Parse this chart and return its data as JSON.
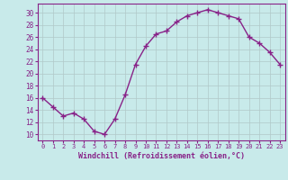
{
  "x": [
    0,
    1,
    2,
    3,
    4,
    5,
    6,
    7,
    8,
    9,
    10,
    11,
    12,
    13,
    14,
    15,
    16,
    17,
    18,
    19,
    20,
    21,
    22,
    23
  ],
  "y": [
    16,
    14.5,
    13,
    13.5,
    12.5,
    10.5,
    10,
    12.5,
    16.5,
    21.5,
    24.5,
    26.5,
    27,
    28.5,
    29.5,
    30,
    30.5,
    30,
    29.5,
    29,
    26,
    25,
    23.5,
    21.5
  ],
  "line_color": "#882288",
  "marker": "+",
  "marker_size": 4,
  "marker_lw": 1.0,
  "bg_color": "#c8eaea",
  "grid_color": "#b0c8c8",
  "xlabel": "Windchill (Refroidissement éolien,°C)",
  "xlim": [
    -0.5,
    23.5
  ],
  "ylim": [
    9,
    31.5
  ],
  "yticks": [
    10,
    12,
    14,
    16,
    18,
    20,
    22,
    24,
    26,
    28,
    30
  ],
  "xticks": [
    0,
    1,
    2,
    3,
    4,
    5,
    6,
    7,
    8,
    9,
    10,
    11,
    12,
    13,
    14,
    15,
    16,
    17,
    18,
    19,
    20,
    21,
    22,
    23
  ],
  "tick_color": "#882288",
  "xlabel_fontsize": 6.0,
  "tick_fontsize": 5.0,
  "ytick_fontsize": 5.5,
  "line_width": 1.0
}
